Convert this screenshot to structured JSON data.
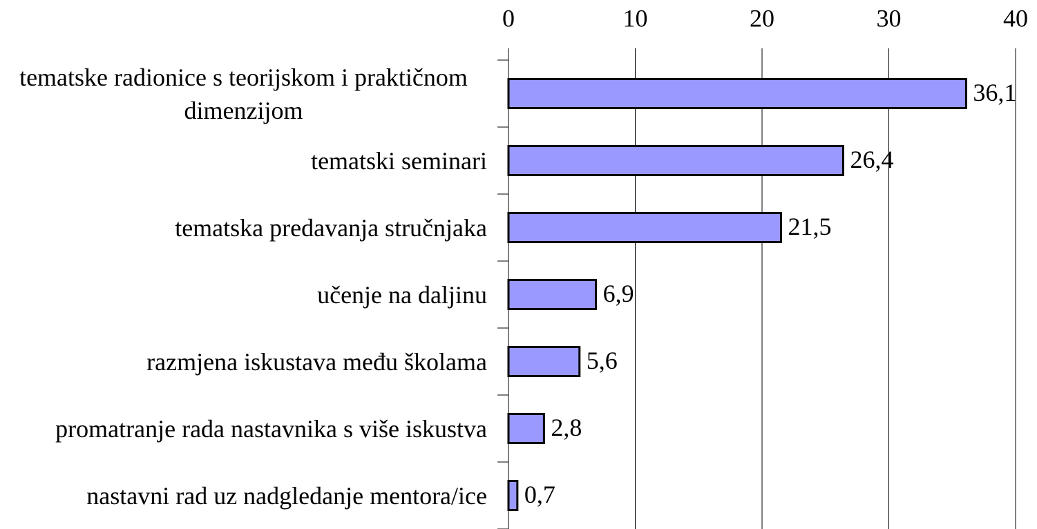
{
  "chart_data": {
    "type": "bar",
    "orientation": "horizontal",
    "categories": [
      "tematske radionice s teorijskom i praktičnom dimenzijom",
      "tematski seminari",
      "tematska predavanja stručnjaka",
      "učenje na daljinu",
      "razmjena iskustava među školama",
      "promatranje rada nastavnika s više iskustva",
      "nastavni rad uz nadgledanje mentora/ice"
    ],
    "values": [
      36.1,
      26.4,
      21.5,
      6.9,
      5.6,
      2.8,
      0.7
    ],
    "value_labels": [
      "36,1",
      "26,4",
      "21,5",
      "6,9",
      "5,6",
      "2,8",
      "0,7"
    ],
    "color": "#9999ff",
    "xlim": [
      0,
      40
    ],
    "xticks": [
      0,
      10,
      20,
      30,
      40
    ],
    "grid": true
  }
}
